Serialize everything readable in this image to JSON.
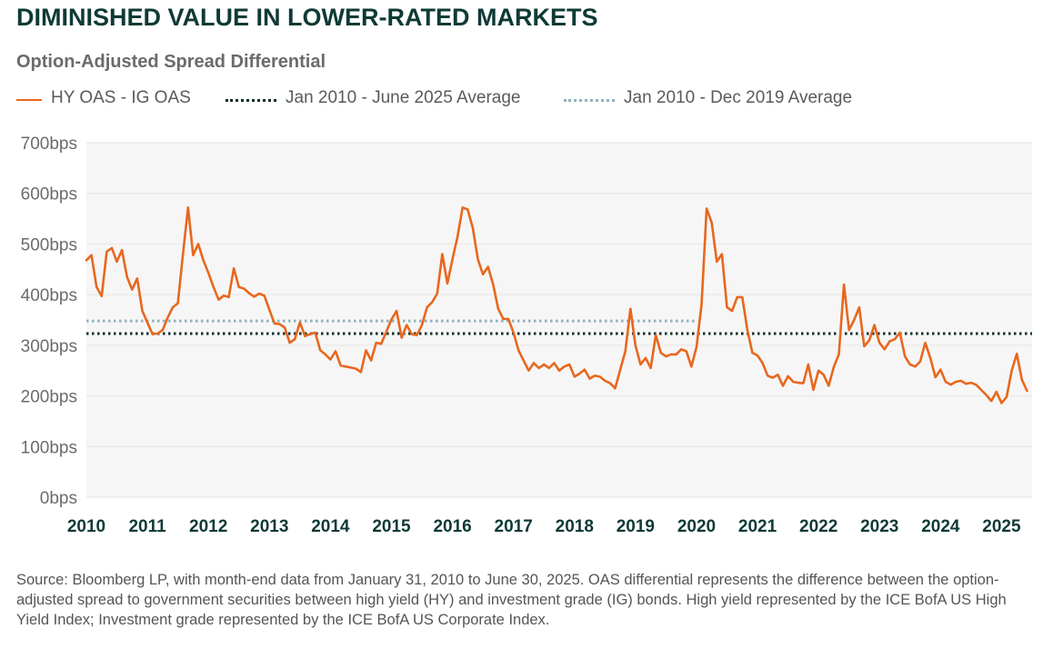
{
  "title": "DIMINISHED VALUE IN LOWER-RATED MARKETS",
  "subtitle": "Option-Adjusted Spread Differential",
  "source": "Source: Bloomberg LP, with month-end data from January 31, 2010 to June 30, 2025. OAS differential represents the difference between the option-adjusted spread to government securities between high yield (HY) and investment grade (IG) bonds. High yield represented by the ICE BofA US High Yield Index; Investment grade represented by the ICE BofA US Corporate Index.",
  "colors": {
    "series": "#e8671e",
    "avg_full": "#0e2f2b",
    "avg_pre2020": "#8fb3bd",
    "plot_bg": "#f6f6f6",
    "grid": "#e6e6e6",
    "axis_text": "#6b6b6b",
    "year_text": "#0f3a36"
  },
  "chart_data": {
    "type": "line",
    "title": "Option-Adjusted Spread Differential",
    "xlabel": "",
    "ylabel": "",
    "ylim": [
      0,
      700
    ],
    "xlim": [
      2010.0,
      2025.5
    ],
    "yticks": [
      {
        "value": 0,
        "label": "0bps"
      },
      {
        "value": 100,
        "label": "100bps"
      },
      {
        "value": 200,
        "label": "200bps"
      },
      {
        "value": 300,
        "label": "300bps"
      },
      {
        "value": 400,
        "label": "400bps"
      },
      {
        "value": 500,
        "label": "500bps"
      },
      {
        "value": 600,
        "label": "600bps"
      },
      {
        "value": 700,
        "label": "700bps"
      }
    ],
    "xticks": [
      {
        "value": 2010,
        "label": "2010"
      },
      {
        "value": 2011,
        "label": "2011"
      },
      {
        "value": 2012,
        "label": "2012"
      },
      {
        "value": 2013,
        "label": "2013"
      },
      {
        "value": 2014,
        "label": "2014"
      },
      {
        "value": 2015,
        "label": "2015"
      },
      {
        "value": 2016,
        "label": "2016"
      },
      {
        "value": 2017,
        "label": "2017"
      },
      {
        "value": 2018,
        "label": "2018"
      },
      {
        "value": 2019,
        "label": "2019"
      },
      {
        "value": 2020,
        "label": "2020"
      },
      {
        "value": 2021,
        "label": "2021"
      },
      {
        "value": 2022,
        "label": "2022"
      },
      {
        "value": 2023,
        "label": "2023"
      },
      {
        "value": 2024,
        "label": "2024"
      },
      {
        "value": 2025,
        "label": "2025"
      }
    ],
    "legend": [
      {
        "label": "HY OAS - IG OAS",
        "style": "solid"
      },
      {
        "label": "Jan 2010 - June 2025 Average",
        "style": "dotted"
      },
      {
        "label": "Jan 2010 - Dec 2019 Average",
        "style": "dotted"
      }
    ],
    "averages": [
      {
        "name": "Jan 2010 - June 2025 Average",
        "value": 323,
        "x_start": 2010.0,
        "x_end": 2025.5
      },
      {
        "name": "Jan 2010 - Dec 2019 Average",
        "value": 348,
        "x_start": 2010.0,
        "x_end": 2020.0
      }
    ],
    "series": [
      {
        "name": "HY OAS - IG OAS",
        "start": 2010.0,
        "step": 0.08333,
        "values": [
          468,
          478,
          415,
          397,
          485,
          492,
          465,
          488,
          435,
          410,
          432,
          368,
          345,
          322,
          323,
          330,
          355,
          375,
          383,
          480,
          572,
          478,
          500,
          468,
          443,
          415,
          390,
          398,
          395,
          452,
          415,
          412,
          403,
          396,
          402,
          398,
          370,
          343,
          342,
          335,
          305,
          312,
          345,
          318,
          322,
          325,
          290,
          282,
          272,
          288,
          260,
          258,
          256,
          254,
          247,
          290,
          270,
          305,
          303,
          327,
          351,
          368,
          315,
          340,
          322,
          320,
          340,
          375,
          385,
          402,
          480,
          422,
          470,
          515,
          572,
          568,
          532,
          470,
          440,
          455,
          420,
          372,
          352,
          352,
          325,
          290,
          270,
          250,
          265,
          255,
          262,
          255,
          265,
          250,
          258,
          262,
          238,
          244,
          252,
          234,
          240,
          238,
          230,
          225,
          215,
          252,
          288,
          372,
          300,
          262,
          275,
          255,
          320,
          285,
          278,
          282,
          282,
          292,
          288,
          258,
          296,
          380,
          570,
          542,
          465,
          480,
          375,
          368,
          395,
          395,
          330,
          285,
          280,
          265,
          240,
          236,
          242,
          220,
          239,
          228,
          226,
          225,
          262,
          212,
          250,
          242,
          220,
          257,
          282,
          420,
          330,
          350,
          375,
          298,
          310,
          340,
          305,
          292,
          308,
          312,
          325,
          278,
          262,
          258,
          268,
          305,
          275,
          237,
          252,
          228,
          222,
          228,
          230,
          224,
          226,
          222,
          212,
          202,
          190,
          208,
          186,
          198,
          250,
          283,
          232,
          210
        ]
      }
    ]
  }
}
